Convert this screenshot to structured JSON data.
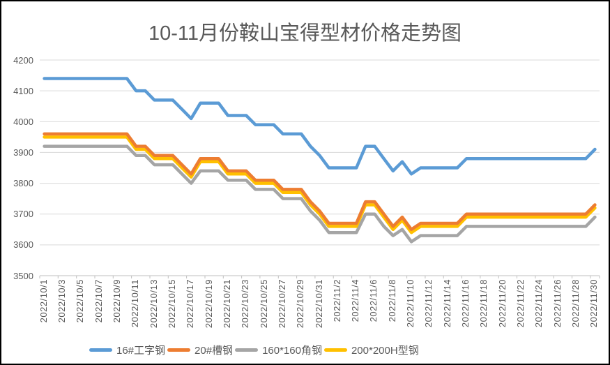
{
  "chart_data": {
    "type": "line",
    "title": "10-11月份鞍山宝得型材价格走势图",
    "xlabel": "",
    "ylabel": "",
    "ylim": [
      3500,
      4200
    ],
    "y_ticks": [
      4200,
      4100,
      4000,
      3900,
      3800,
      3700,
      3600,
      3500
    ],
    "x_label_interval": 2,
    "grid": true,
    "legend_position": "bottom",
    "style": {
      "grid_color": "#D9D9D9",
      "axis_color": "#BFBFBF",
      "text_color": "#595959",
      "background": "#FFFFFF",
      "border_color": "#000000"
    },
    "x": [
      "2022/10/1",
      "2022/10/2",
      "2022/10/3",
      "2022/10/4",
      "2022/10/5",
      "2022/10/6",
      "2022/10/7",
      "2022/10/8",
      "2022/10/9",
      "2022/10/10",
      "2022/10/11",
      "2022/10/12",
      "2022/10/13",
      "2022/10/14",
      "2022/10/15",
      "2022/10/16",
      "2022/10/17",
      "2022/10/18",
      "2022/10/19",
      "2022/10/20",
      "2022/10/21",
      "2022/10/22",
      "2022/10/23",
      "2022/10/24",
      "2022/10/25",
      "2022/10/26",
      "2022/10/27",
      "2022/10/28",
      "2022/10/29",
      "2022/10/30",
      "2022/10/31",
      "2022/11/1",
      "2022/11/2",
      "2022/11/3",
      "2022/11/4",
      "2022/11/5",
      "2022/11/6",
      "2022/11/7",
      "2022/11/8",
      "2022/11/9",
      "2022/11/10",
      "2022/11/11",
      "2022/11/12",
      "2022/11/13",
      "2022/11/14",
      "2022/11/15",
      "2022/11/16",
      "2022/11/17",
      "2022/11/18",
      "2022/11/19",
      "2022/11/20",
      "2022/11/21",
      "2022/11/22",
      "2022/11/23",
      "2022/11/24",
      "2022/11/25",
      "2022/11/26",
      "2022/11/27",
      "2022/11/28",
      "2022/11/29",
      "2022/11/30"
    ],
    "series": [
      {
        "name": "16#工字钢",
        "color": "#5B9BD5",
        "values": [
          4140,
          4140,
          4140,
          4140,
          4140,
          4140,
          4140,
          4140,
          4140,
          4140,
          4100,
          4100,
          4070,
          4070,
          4070,
          4040,
          4010,
          4060,
          4060,
          4060,
          4020,
          4020,
          4020,
          3990,
          3990,
          3990,
          3960,
          3960,
          3960,
          3920,
          3890,
          3850,
          3850,
          3850,
          3850,
          3920,
          3920,
          3880,
          3840,
          3870,
          3830,
          3850,
          3850,
          3850,
          3850,
          3850,
          3880,
          3880,
          3880,
          3880,
          3880,
          3880,
          3880,
          3880,
          3880,
          3880,
          3880,
          3880,
          3880,
          3880,
          3910
        ]
      },
      {
        "name": "20#槽钢",
        "color": "#ED7D31",
        "values": [
          3960,
          3960,
          3960,
          3960,
          3960,
          3960,
          3960,
          3960,
          3960,
          3960,
          3920,
          3920,
          3890,
          3890,
          3890,
          3860,
          3830,
          3880,
          3880,
          3880,
          3840,
          3840,
          3840,
          3810,
          3810,
          3810,
          3780,
          3780,
          3780,
          3740,
          3710,
          3670,
          3670,
          3670,
          3670,
          3740,
          3740,
          3700,
          3660,
          3690,
          3650,
          3670,
          3670,
          3670,
          3670,
          3670,
          3700,
          3700,
          3700,
          3700,
          3700,
          3700,
          3700,
          3700,
          3700,
          3700,
          3700,
          3700,
          3700,
          3700,
          3730
        ]
      },
      {
        "name": "160*160角钢",
        "color": "#A5A5A5",
        "values": [
          3920,
          3920,
          3920,
          3920,
          3920,
          3920,
          3920,
          3920,
          3920,
          3920,
          3890,
          3890,
          3860,
          3860,
          3860,
          3830,
          3800,
          3840,
          3840,
          3840,
          3810,
          3810,
          3810,
          3780,
          3780,
          3780,
          3750,
          3750,
          3750,
          3710,
          3680,
          3640,
          3640,
          3640,
          3640,
          3700,
          3700,
          3660,
          3630,
          3650,
          3610,
          3630,
          3630,
          3630,
          3630,
          3630,
          3660,
          3660,
          3660,
          3660,
          3660,
          3660,
          3660,
          3660,
          3660,
          3660,
          3660,
          3660,
          3660,
          3660,
          3690
        ]
      },
      {
        "name": "200*200H型钢",
        "color": "#FFC000",
        "values": [
          3950,
          3950,
          3950,
          3950,
          3950,
          3950,
          3950,
          3950,
          3950,
          3950,
          3910,
          3910,
          3880,
          3880,
          3880,
          3850,
          3820,
          3870,
          3870,
          3870,
          3830,
          3830,
          3830,
          3800,
          3800,
          3800,
          3770,
          3770,
          3770,
          3730,
          3700,
          3660,
          3660,
          3660,
          3660,
          3730,
          3730,
          3690,
          3650,
          3680,
          3640,
          3660,
          3660,
          3660,
          3660,
          3660,
          3690,
          3690,
          3690,
          3690,
          3690,
          3690,
          3690,
          3690,
          3690,
          3690,
          3690,
          3690,
          3690,
          3690,
          3720
        ]
      }
    ],
    "draw_order": [
      2,
      3,
      1,
      0
    ]
  }
}
